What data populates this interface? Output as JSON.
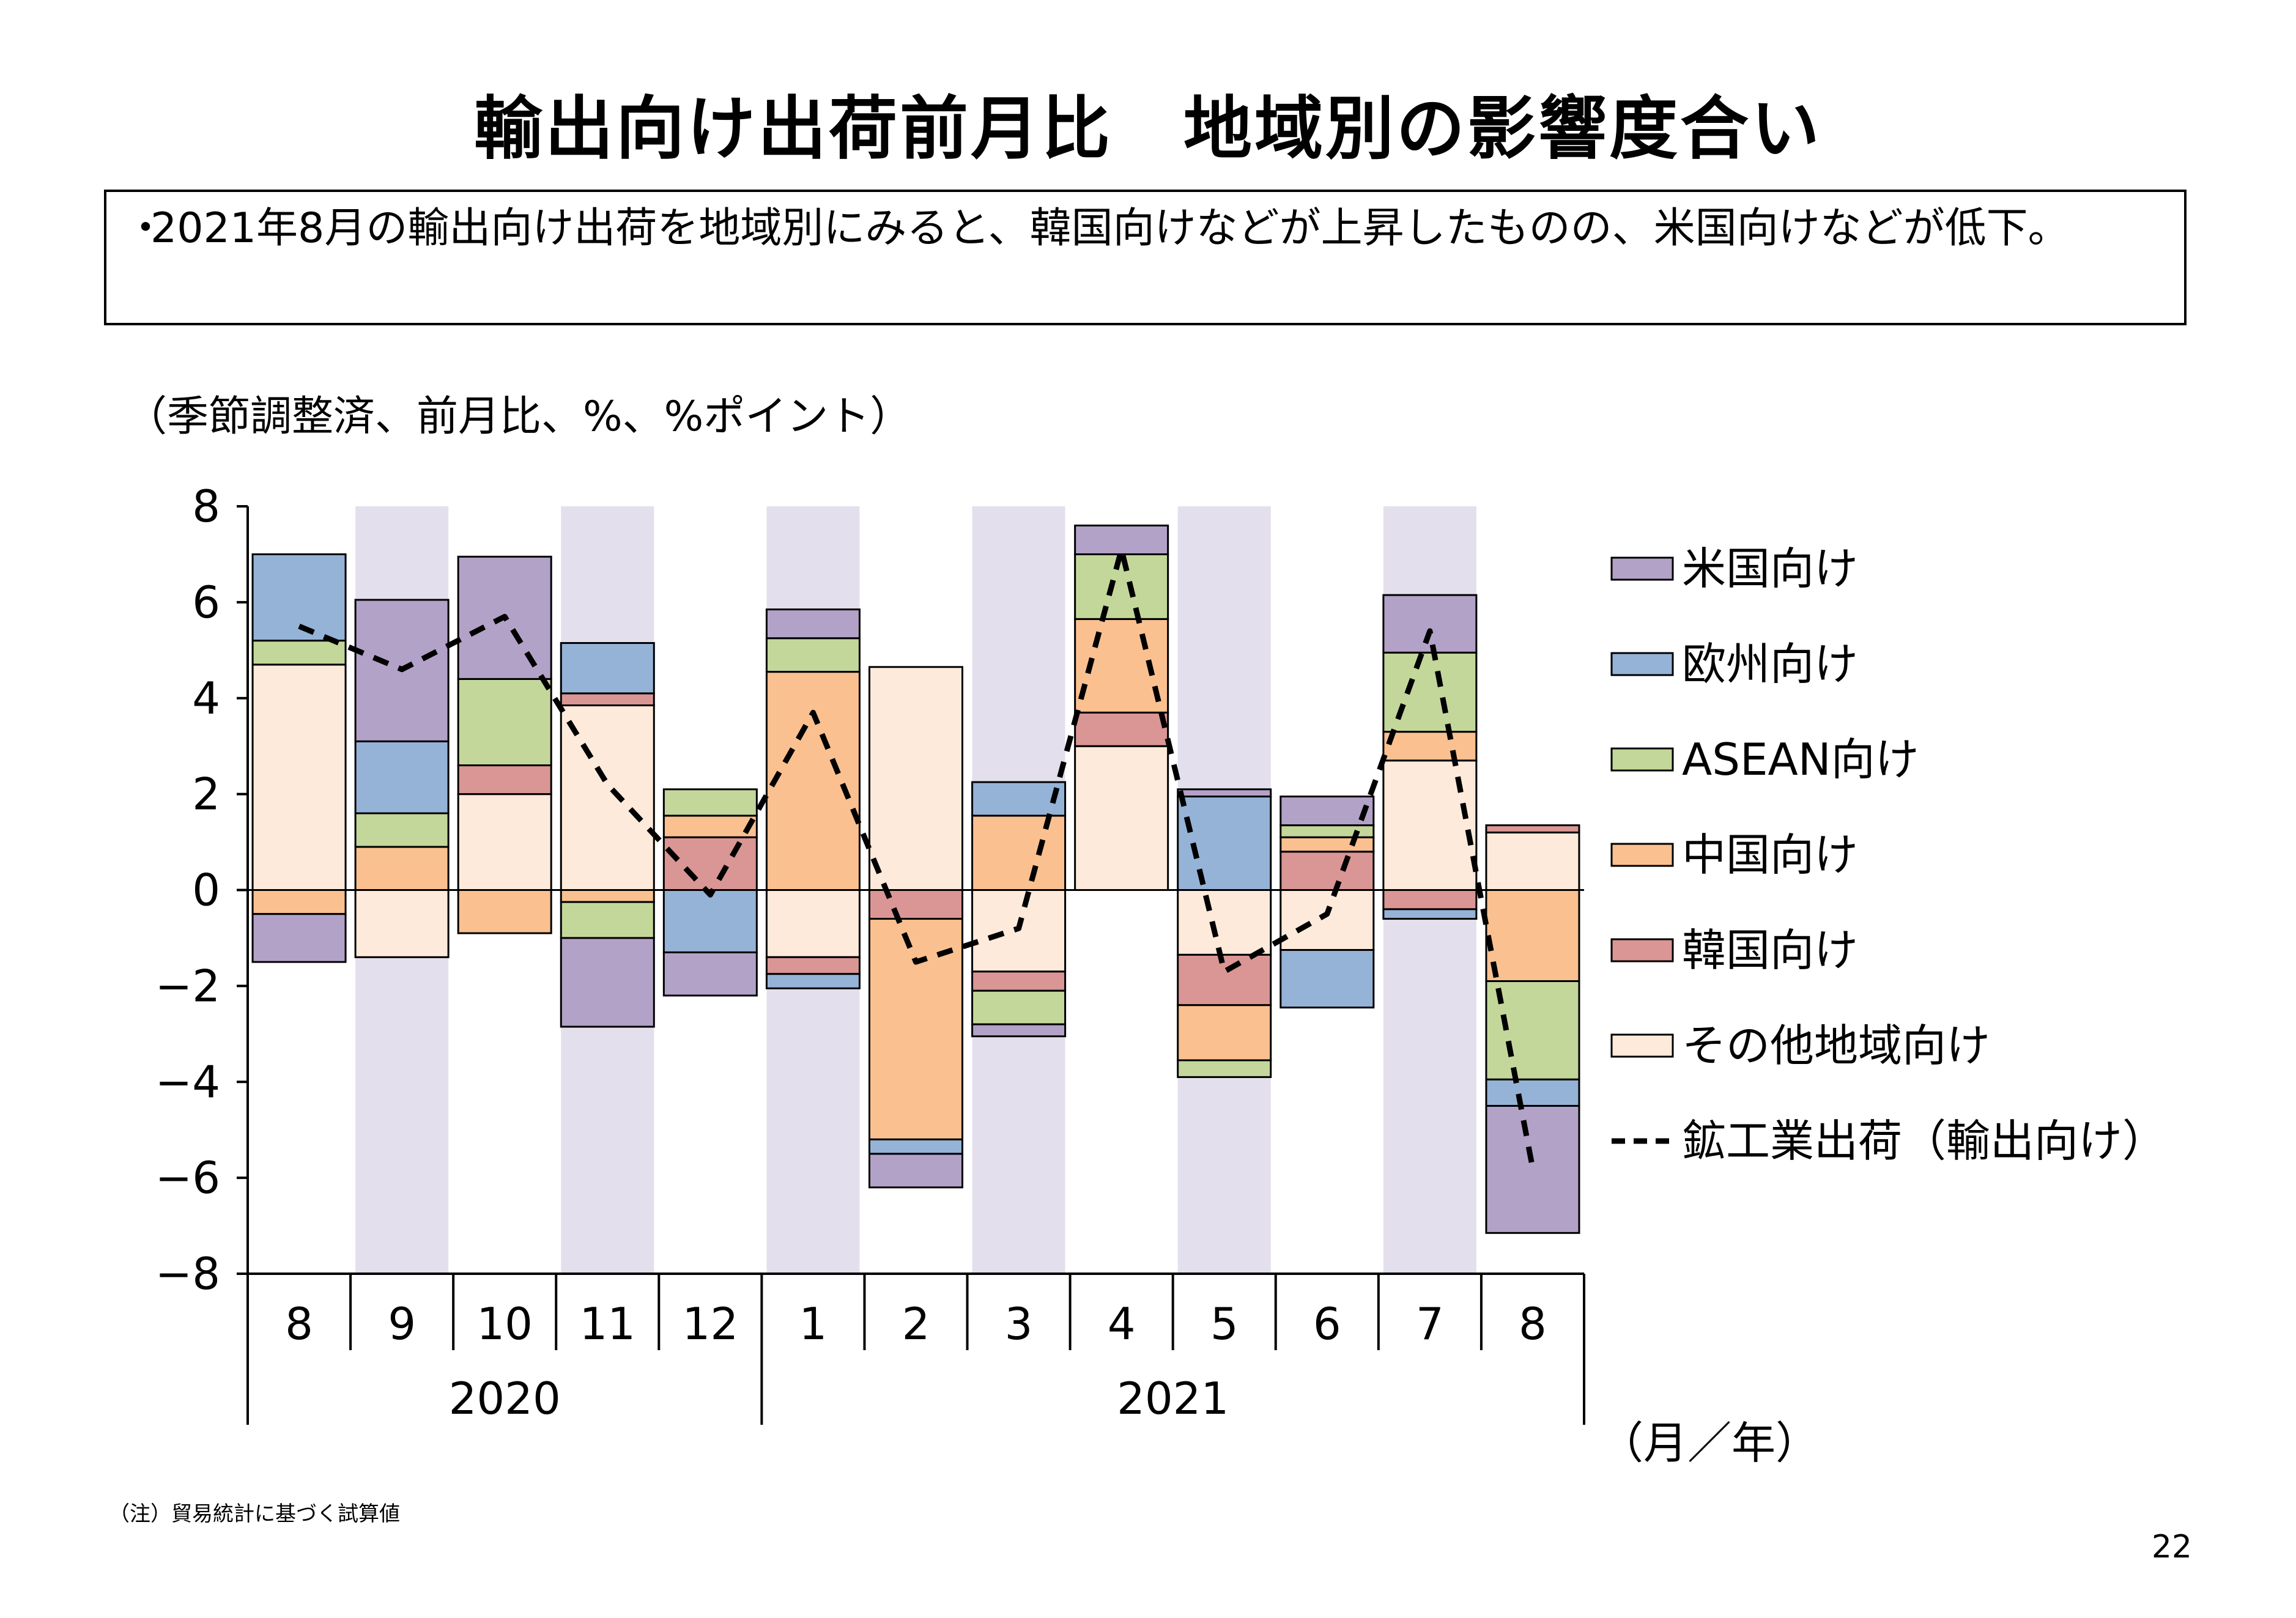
{
  "title": "輸出向け出荷前月比　地域別の影響度合い",
  "summary": {
    "bullet": "・",
    "text": "2021年8月の輸出向け出荷を地域別にみると、韓国向けなどが上昇したものの、米国向けなどが低下。"
  },
  "unit_label": "（季節調整済、前月比、%、%ポイント）",
  "axis_label_x": "（月／年）",
  "footnote": "（注）貿易統計に基づく試算値",
  "page_number": "22",
  "colors": {
    "us": "#b3a2c7",
    "europe": "#95b3d7",
    "asean": "#c4d79b",
    "china": "#fac090",
    "korea": "#da9694",
    "other": "#fdeada",
    "shade": "#e4dfec",
    "line": "#000000"
  },
  "chart_data": {
    "type": "bar",
    "stacked": true,
    "categories": [
      "8",
      "9",
      "10",
      "11",
      "12",
      "1",
      "2",
      "3",
      "4",
      "5",
      "6",
      "7",
      "8"
    ],
    "year_groups": [
      {
        "label": "2020",
        "start": 0,
        "end": 4
      },
      {
        "label": "2021",
        "start": 5,
        "end": 12
      }
    ],
    "shaded_columns": [
      1,
      3,
      5,
      7,
      9,
      11
    ],
    "ylim": [
      -8,
      8
    ],
    "yticks": [
      8,
      6,
      4,
      2,
      0,
      -2,
      -4,
      -6,
      -8
    ],
    "ytick_labels": [
      "8",
      "6",
      "4",
      "2",
      "0",
      "−2",
      "−4",
      "−6",
      "−8"
    ],
    "grid": false,
    "legend_position": "right",
    "series": [
      {
        "key": "other",
        "name": "その他地域向け",
        "values": [
          4.7,
          -1.4,
          2.0,
          3.85,
          0.0,
          -1.4,
          4.65,
          -1.7,
          3.0,
          -1.35,
          -1.25,
          2.7,
          1.2
        ]
      },
      {
        "key": "korea",
        "name": "韓国向け",
        "values": [
          0.0,
          0.0,
          0.6,
          0.25,
          1.1,
          -0.35,
          -0.6,
          -0.4,
          0.7,
          -1.05,
          0.8,
          -0.4,
          0.15
        ]
      },
      {
        "key": "china",
        "name": "中国向け",
        "values": [
          -0.5,
          0.9,
          -0.9,
          -0.25,
          0.45,
          4.55,
          -4.6,
          1.55,
          1.95,
          -1.15,
          0.3,
          0.6,
          -1.9
        ]
      },
      {
        "key": "asean",
        "name": "ASEAN向け",
        "values": [
          0.5,
          0.7,
          1.8,
          -0.75,
          0.55,
          0.7,
          0.0,
          -0.7,
          1.35,
          -0.35,
          0.25,
          1.65,
          -2.05
        ]
      },
      {
        "key": "europe",
        "name": "欧州向け",
        "values": [
          1.8,
          1.5,
          0.0,
          1.05,
          -1.3,
          -0.3,
          -0.3,
          0.7,
          0.0,
          1.95,
          -1.2,
          -0.2,
          -0.55
        ]
      },
      {
        "key": "us",
        "name": "米国向け",
        "values": [
          -1.0,
          2.95,
          2.55,
          -1.85,
          -0.9,
          0.6,
          -0.7,
          -0.25,
          0.6,
          0.15,
          0.6,
          1.2,
          -2.65
        ]
      }
    ],
    "negative_extra": [
      {
        "key": "europe",
        "values": [
          0,
          0,
          -0.15,
          0,
          0,
          -0.3,
          -0.3,
          0,
          -0.5,
          0,
          0,
          -0.2,
          -0.55
        ]
      }
    ],
    "line": {
      "name": "鉱工業出荷（輸出向け）",
      "values": [
        5.5,
        4.6,
        5.7,
        2.2,
        -0.1,
        3.7,
        -1.5,
        -0.8,
        7.1,
        -1.7,
        -0.5,
        5.4,
        -5.8
      ]
    },
    "legend_order": [
      "us",
      "europe",
      "asean",
      "china",
      "korea",
      "other",
      "line"
    ]
  }
}
